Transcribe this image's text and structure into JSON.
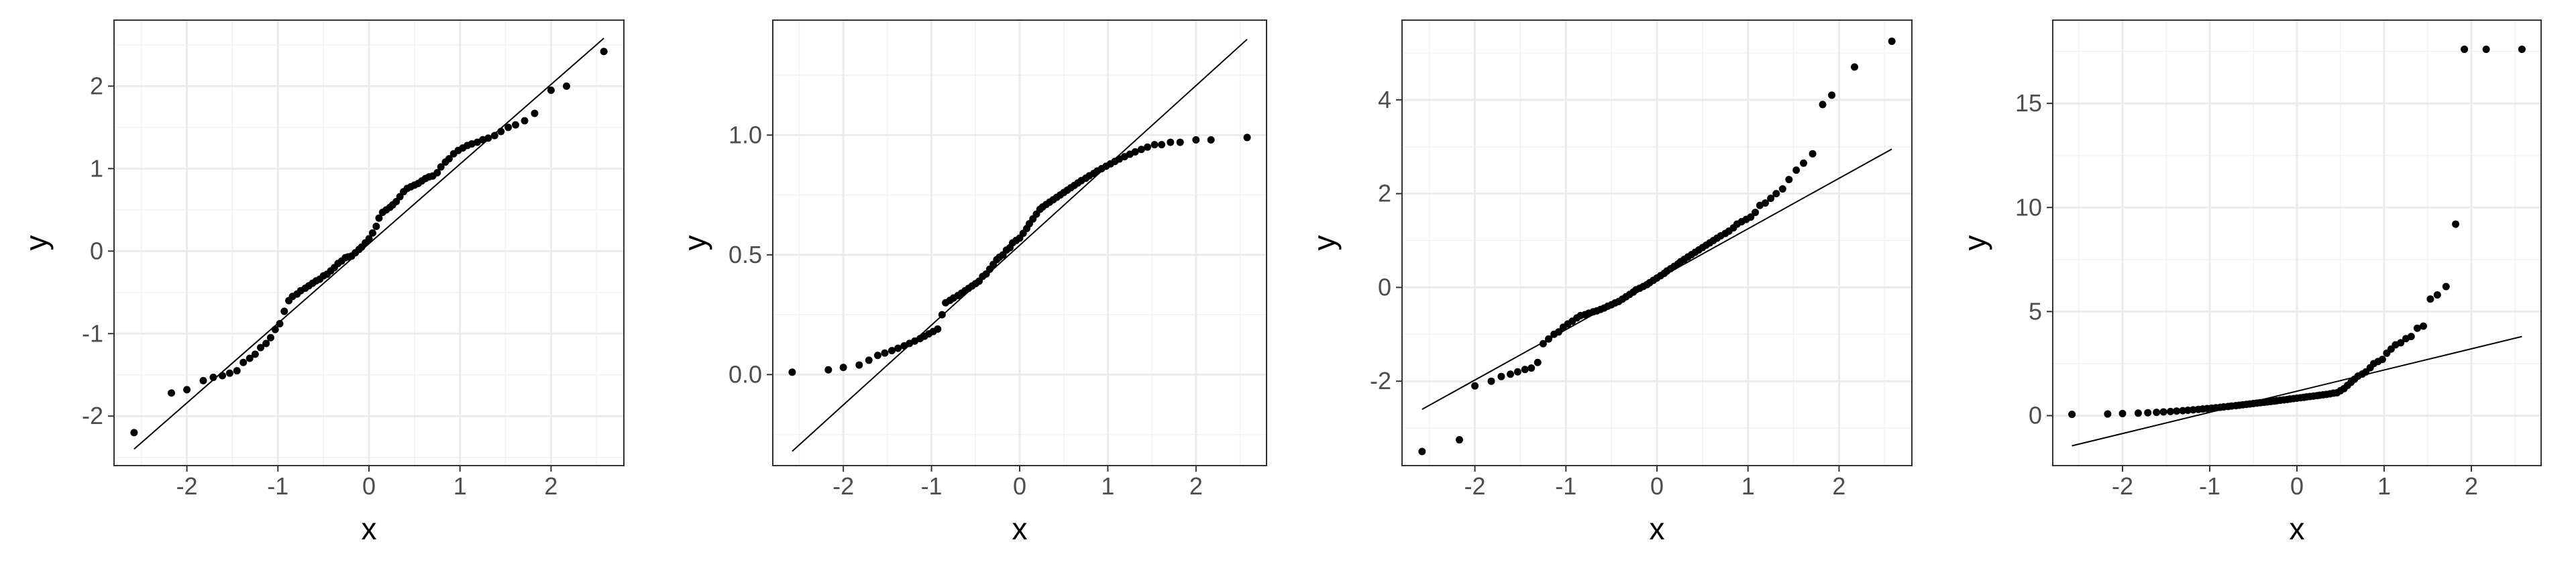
{
  "chart_data": [
    {
      "type": "scatter",
      "xlabel": "x",
      "ylabel": "y",
      "xlim": [
        -2.8,
        2.8
      ],
      "ylim": [
        -2.6,
        2.8
      ],
      "xticks": [
        -2,
        -1,
        0,
        1,
        2
      ],
      "xtick_labels": [
        "-2",
        "-1",
        "0",
        "1",
        "2"
      ],
      "yticks": [
        -2,
        -1,
        0,
        1,
        2
      ],
      "ytick_labels": [
        "-2",
        "-1",
        "0",
        "1",
        "2"
      ],
      "reference_line": {
        "x": [
          -2.58,
          2.58
        ],
        "y": [
          -2.4,
          2.58
        ]
      },
      "grid": true,
      "points": {
        "x": [
          -2.58,
          -2.17,
          -2.0,
          -1.82,
          -1.71,
          -1.61,
          -1.53,
          -1.45,
          -1.38,
          -1.31,
          -1.25,
          -1.19,
          -1.13,
          -1.08,
          -1.03,
          -0.98,
          -0.93,
          -0.88,
          -0.84,
          -0.79,
          -0.75,
          -0.7,
          -0.66,
          -0.62,
          -0.58,
          -0.54,
          -0.5,
          -0.46,
          -0.42,
          -0.38,
          -0.34,
          -0.3,
          -0.26,
          -0.23,
          -0.19,
          -0.15,
          -0.11,
          -0.08,
          -0.04,
          0.0,
          0.04,
          0.08,
          0.11,
          0.15,
          0.19,
          0.23,
          0.26,
          0.3,
          0.34,
          0.38,
          0.42,
          0.46,
          0.5,
          0.54,
          0.58,
          0.62,
          0.66,
          0.7,
          0.75,
          0.79,
          0.84,
          0.88,
          0.93,
          0.98,
          1.03,
          1.08,
          1.13,
          1.19,
          1.25,
          1.31,
          1.38,
          1.45,
          1.53,
          1.61,
          1.71,
          1.82,
          2.0,
          2.17,
          2.58
        ],
        "y": [
          -2.2,
          -1.72,
          -1.68,
          -1.57,
          -1.53,
          -1.51,
          -1.48,
          -1.45,
          -1.35,
          -1.3,
          -1.25,
          -1.17,
          -1.12,
          -1.05,
          -0.95,
          -0.88,
          -0.73,
          -0.6,
          -0.55,
          -0.52,
          -0.48,
          -0.45,
          -0.42,
          -0.39,
          -0.36,
          -0.34,
          -0.3,
          -0.28,
          -0.24,
          -0.2,
          -0.15,
          -0.12,
          -0.08,
          -0.07,
          -0.06,
          -0.02,
          0.02,
          0.05,
          0.1,
          0.15,
          0.22,
          0.3,
          0.4,
          0.47,
          0.5,
          0.53,
          0.56,
          0.6,
          0.66,
          0.72,
          0.76,
          0.78,
          0.8,
          0.82,
          0.85,
          0.88,
          0.9,
          0.91,
          0.95,
          1.02,
          1.08,
          1.12,
          1.18,
          1.22,
          1.25,
          1.28,
          1.3,
          1.32,
          1.35,
          1.37,
          1.4,
          1.45,
          1.5,
          1.53,
          1.58,
          1.67,
          1.95,
          2.0,
          2.42
        ]
      }
    },
    {
      "type": "scatter",
      "xlabel": "x",
      "ylabel": "y",
      "xlim": [
        -2.8,
        2.8
      ],
      "ylim": [
        -0.38,
        1.48
      ],
      "xticks": [
        -2,
        -1,
        0,
        1,
        2
      ],
      "xtick_labels": [
        "-2",
        "-1",
        "0",
        "1",
        "2"
      ],
      "yticks": [
        0,
        0.5,
        1
      ],
      "ytick_labels": [
        "0.0",
        "0.5",
        "1.0"
      ],
      "reference_line": {
        "x": [
          -2.58,
          2.58
        ],
        "y": [
          -0.32,
          1.4
        ]
      },
      "grid": true,
      "points": {
        "x": [
          -2.58,
          -2.17,
          -2.0,
          -1.82,
          -1.71,
          -1.61,
          -1.53,
          -1.45,
          -1.38,
          -1.31,
          -1.25,
          -1.19,
          -1.13,
          -1.08,
          -1.03,
          -0.98,
          -0.93,
          -0.88,
          -0.84,
          -0.79,
          -0.75,
          -0.7,
          -0.66,
          -0.62,
          -0.58,
          -0.54,
          -0.5,
          -0.46,
          -0.42,
          -0.38,
          -0.34,
          -0.3,
          -0.26,
          -0.23,
          -0.19,
          -0.15,
          -0.11,
          -0.08,
          -0.04,
          0.0,
          0.04,
          0.08,
          0.11,
          0.15,
          0.19,
          0.23,
          0.26,
          0.3,
          0.34,
          0.38,
          0.42,
          0.46,
          0.5,
          0.54,
          0.58,
          0.62,
          0.66,
          0.7,
          0.75,
          0.79,
          0.84,
          0.88,
          0.93,
          0.98,
          1.03,
          1.08,
          1.13,
          1.19,
          1.25,
          1.31,
          1.38,
          1.45,
          1.53,
          1.61,
          1.71,
          1.82,
          2.0,
          2.17,
          2.58
        ],
        "y": [
          0.01,
          0.02,
          0.03,
          0.04,
          0.06,
          0.08,
          0.09,
          0.1,
          0.11,
          0.12,
          0.13,
          0.14,
          0.15,
          0.16,
          0.17,
          0.18,
          0.19,
          0.25,
          0.3,
          0.31,
          0.32,
          0.33,
          0.34,
          0.35,
          0.36,
          0.37,
          0.38,
          0.39,
          0.41,
          0.42,
          0.44,
          0.46,
          0.48,
          0.49,
          0.5,
          0.52,
          0.53,
          0.55,
          0.56,
          0.57,
          0.59,
          0.61,
          0.63,
          0.65,
          0.67,
          0.69,
          0.7,
          0.71,
          0.72,
          0.73,
          0.74,
          0.75,
          0.76,
          0.77,
          0.78,
          0.79,
          0.8,
          0.81,
          0.82,
          0.83,
          0.84,
          0.85,
          0.86,
          0.87,
          0.88,
          0.89,
          0.9,
          0.91,
          0.92,
          0.93,
          0.94,
          0.95,
          0.96,
          0.96,
          0.97,
          0.97,
          0.98,
          0.98,
          0.99
        ]
      }
    },
    {
      "type": "scatter",
      "xlabel": "x",
      "ylabel": "y",
      "xlim": [
        -2.8,
        2.8
      ],
      "ylim": [
        -3.8,
        5.7
      ],
      "xticks": [
        -2,
        -1,
        0,
        1,
        2
      ],
      "xtick_labels": [
        "-2",
        "-1",
        "0",
        "1",
        "2"
      ],
      "yticks": [
        -2,
        0,
        2,
        4
      ],
      "ytick_labels": [
        "-2",
        "0",
        "2",
        "4"
      ],
      "reference_line": {
        "x": [
          -2.58,
          2.58
        ],
        "y": [
          -2.6,
          2.95
        ]
      },
      "grid": true,
      "points": {
        "x": [
          -2.58,
          -2.17,
          -2.0,
          -1.82,
          -1.71,
          -1.61,
          -1.53,
          -1.45,
          -1.38,
          -1.31,
          -1.25,
          -1.19,
          -1.13,
          -1.08,
          -1.03,
          -0.98,
          -0.93,
          -0.88,
          -0.84,
          -0.79,
          -0.75,
          -0.7,
          -0.66,
          -0.62,
          -0.58,
          -0.54,
          -0.5,
          -0.46,
          -0.42,
          -0.38,
          -0.34,
          -0.3,
          -0.26,
          -0.23,
          -0.19,
          -0.15,
          -0.11,
          -0.08,
          -0.04,
          0.0,
          0.04,
          0.08,
          0.11,
          0.15,
          0.19,
          0.23,
          0.26,
          0.3,
          0.34,
          0.38,
          0.42,
          0.46,
          0.5,
          0.54,
          0.58,
          0.62,
          0.66,
          0.7,
          0.75,
          0.79,
          0.84,
          0.88,
          0.93,
          0.98,
          1.03,
          1.08,
          1.13,
          1.19,
          1.25,
          1.31,
          1.38,
          1.45,
          1.53,
          1.61,
          1.71,
          1.82,
          1.92,
          2.17,
          2.58
        ],
        "y": [
          -3.5,
          -3.25,
          -2.1,
          -2.0,
          -1.9,
          -1.85,
          -1.8,
          -1.75,
          -1.72,
          -1.6,
          -1.2,
          -1.1,
          -1.0,
          -0.95,
          -0.85,
          -0.78,
          -0.72,
          -0.65,
          -0.6,
          -0.58,
          -0.55,
          -0.52,
          -0.5,
          -0.47,
          -0.44,
          -0.4,
          -0.37,
          -0.33,
          -0.3,
          -0.25,
          -0.2,
          -0.15,
          -0.1,
          -0.05,
          -0.02,
          0.02,
          0.06,
          0.1,
          0.15,
          0.2,
          0.25,
          0.3,
          0.35,
          0.4,
          0.45,
          0.5,
          0.55,
          0.6,
          0.65,
          0.7,
          0.75,
          0.8,
          0.85,
          0.9,
          0.95,
          1.0,
          1.05,
          1.1,
          1.15,
          1.2,
          1.27,
          1.35,
          1.4,
          1.45,
          1.5,
          1.6,
          1.75,
          1.8,
          1.9,
          2.0,
          2.1,
          2.3,
          2.5,
          2.65,
          2.85,
          3.9,
          4.1,
          4.7,
          5.25
        ]
      }
    },
    {
      "type": "scatter",
      "xlabel": "x",
      "ylabel": "y",
      "xlim": [
        -2.8,
        2.8
      ],
      "ylim": [
        -2.4,
        19.0
      ],
      "xticks": [
        -2,
        -1,
        0,
        1,
        2
      ],
      "xtick_labels": [
        "-2",
        "-1",
        "0",
        "1",
        "2"
      ],
      "yticks": [
        0,
        5,
        10,
        15
      ],
      "ytick_labels": [
        "0",
        "5",
        "10",
        "15"
      ],
      "reference_line": {
        "x": [
          -2.58,
          2.58
        ],
        "y": [
          -1.45,
          3.8
        ]
      },
      "grid": true,
      "points": {
        "x": [
          -2.58,
          -2.17,
          -2.0,
          -1.82,
          -1.71,
          -1.61,
          -1.53,
          -1.45,
          -1.38,
          -1.31,
          -1.25,
          -1.19,
          -1.13,
          -1.08,
          -1.03,
          -0.98,
          -0.93,
          -0.88,
          -0.84,
          -0.79,
          -0.75,
          -0.7,
          -0.66,
          -0.62,
          -0.58,
          -0.54,
          -0.5,
          -0.46,
          -0.42,
          -0.38,
          -0.34,
          -0.3,
          -0.26,
          -0.23,
          -0.19,
          -0.15,
          -0.11,
          -0.08,
          -0.04,
          0.0,
          0.04,
          0.08,
          0.11,
          0.15,
          0.19,
          0.23,
          0.26,
          0.3,
          0.34,
          0.38,
          0.42,
          0.46,
          0.5,
          0.54,
          0.58,
          0.62,
          0.66,
          0.7,
          0.75,
          0.79,
          0.84,
          0.88,
          0.93,
          0.98,
          1.03,
          1.08,
          1.13,
          1.19,
          1.25,
          1.31,
          1.38,
          1.45,
          1.53,
          1.61,
          1.71,
          1.82,
          1.92,
          2.17,
          2.58
        ],
        "y": [
          0.06,
          0.08,
          0.1,
          0.12,
          0.14,
          0.16,
          0.18,
          0.2,
          0.22,
          0.24,
          0.26,
          0.28,
          0.3,
          0.32,
          0.34,
          0.36,
          0.38,
          0.4,
          0.42,
          0.44,
          0.46,
          0.48,
          0.5,
          0.52,
          0.54,
          0.56,
          0.58,
          0.6,
          0.62,
          0.64,
          0.66,
          0.68,
          0.7,
          0.72,
          0.74,
          0.76,
          0.78,
          0.8,
          0.82,
          0.84,
          0.86,
          0.88,
          0.9,
          0.92,
          0.94,
          0.96,
          0.98,
          1.0,
          1.02,
          1.05,
          1.08,
          1.1,
          1.2,
          1.3,
          1.45,
          1.6,
          1.75,
          1.9,
          2.0,
          2.1,
          2.3,
          2.5,
          2.6,
          2.7,
          3.0,
          3.2,
          3.4,
          3.5,
          3.7,
          3.8,
          4.2,
          4.3,
          5.6,
          5.8,
          6.2,
          9.2,
          17.6,
          17.6,
          17.6
        ]
      }
    }
  ]
}
